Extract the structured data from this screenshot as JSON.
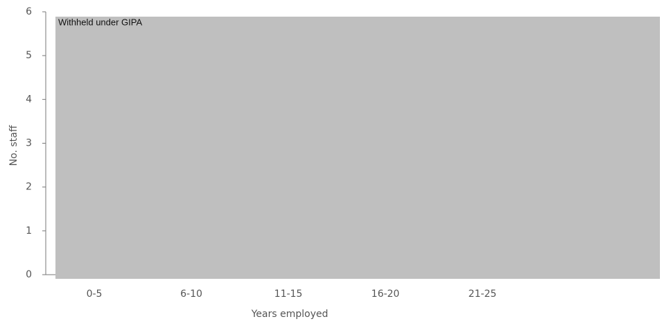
{
  "chart_data": {
    "type": "bar",
    "categories": [
      "0-5",
      "6-10",
      "11-15",
      "16-20",
      "21-25"
    ],
    "xlabel": "Years employed",
    "ylabel": "No. staff",
    "ylim": [
      0,
      6
    ],
    "yticks": [
      0,
      1,
      2,
      3,
      4,
      5,
      6
    ],
    "annotation": "Withheld under GIPA"
  }
}
